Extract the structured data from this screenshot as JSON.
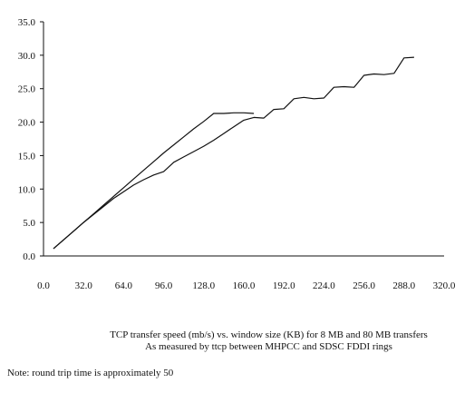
{
  "chart_data": {
    "type": "line",
    "title": "",
    "xlabel": "",
    "ylabel": "",
    "xlim": [
      0,
      320
    ],
    "ylim": [
      0,
      35
    ],
    "x_ticks": [
      "0.0",
      "32.0",
      "64.0",
      "96.0",
      "128.0",
      "160.0",
      "192.0",
      "224.0",
      "256.0",
      "288.0",
      "320.0"
    ],
    "y_ticks": [
      "0.0",
      "5.0",
      "10.0",
      "15.0",
      "20.0",
      "25.0",
      "30.0",
      "35.0"
    ],
    "grid": false,
    "series": [
      {
        "x": [
          8,
          16,
          24,
          32,
          40,
          48,
          56,
          64,
          72,
          80,
          88,
          96,
          104,
          112,
          120,
          128,
          136,
          144,
          152,
          160,
          168
        ],
        "y": [
          1.1,
          2.4,
          3.7,
          5.0,
          6.3,
          7.6,
          8.9,
          10.2,
          11.5,
          12.8,
          14.1,
          15.4,
          16.6,
          17.8,
          19.0,
          20.1,
          21.3,
          21.3,
          21.4,
          21.4,
          21.3
        ]
      },
      {
        "x": [
          8,
          16,
          24,
          32,
          40,
          48,
          56,
          64,
          72,
          80,
          88,
          96,
          104,
          112,
          120,
          128,
          136,
          144,
          152,
          160,
          168,
          176,
          184,
          192,
          200,
          208,
          216,
          224,
          232,
          240,
          248,
          256,
          264,
          272,
          280,
          288,
          296
        ],
        "y": [
          1.1,
          2.4,
          3.7,
          5.0,
          6.2,
          7.4,
          8.6,
          9.6,
          10.6,
          11.4,
          12.1,
          12.6,
          14.0,
          14.8,
          15.6,
          16.4,
          17.3,
          18.3,
          19.3,
          20.3,
          20.7,
          20.6,
          21.9,
          22.0,
          23.5,
          23.7,
          23.5,
          23.6,
          25.2,
          25.3,
          25.2,
          27.0,
          27.2,
          27.1,
          27.3,
          29.6,
          29.7
        ]
      }
    ]
  },
  "caption_line1": "TCP transfer speed (mb/s) vs. window size (KB) for 8 MB and 80 MB transfers",
  "caption_line2": "As measured by ttcp between MHPCC and SDSC FDDI rings",
  "note": "Note: round trip time is approximately 50",
  "colors": {
    "line": "#111111",
    "axis": "#111111"
  }
}
